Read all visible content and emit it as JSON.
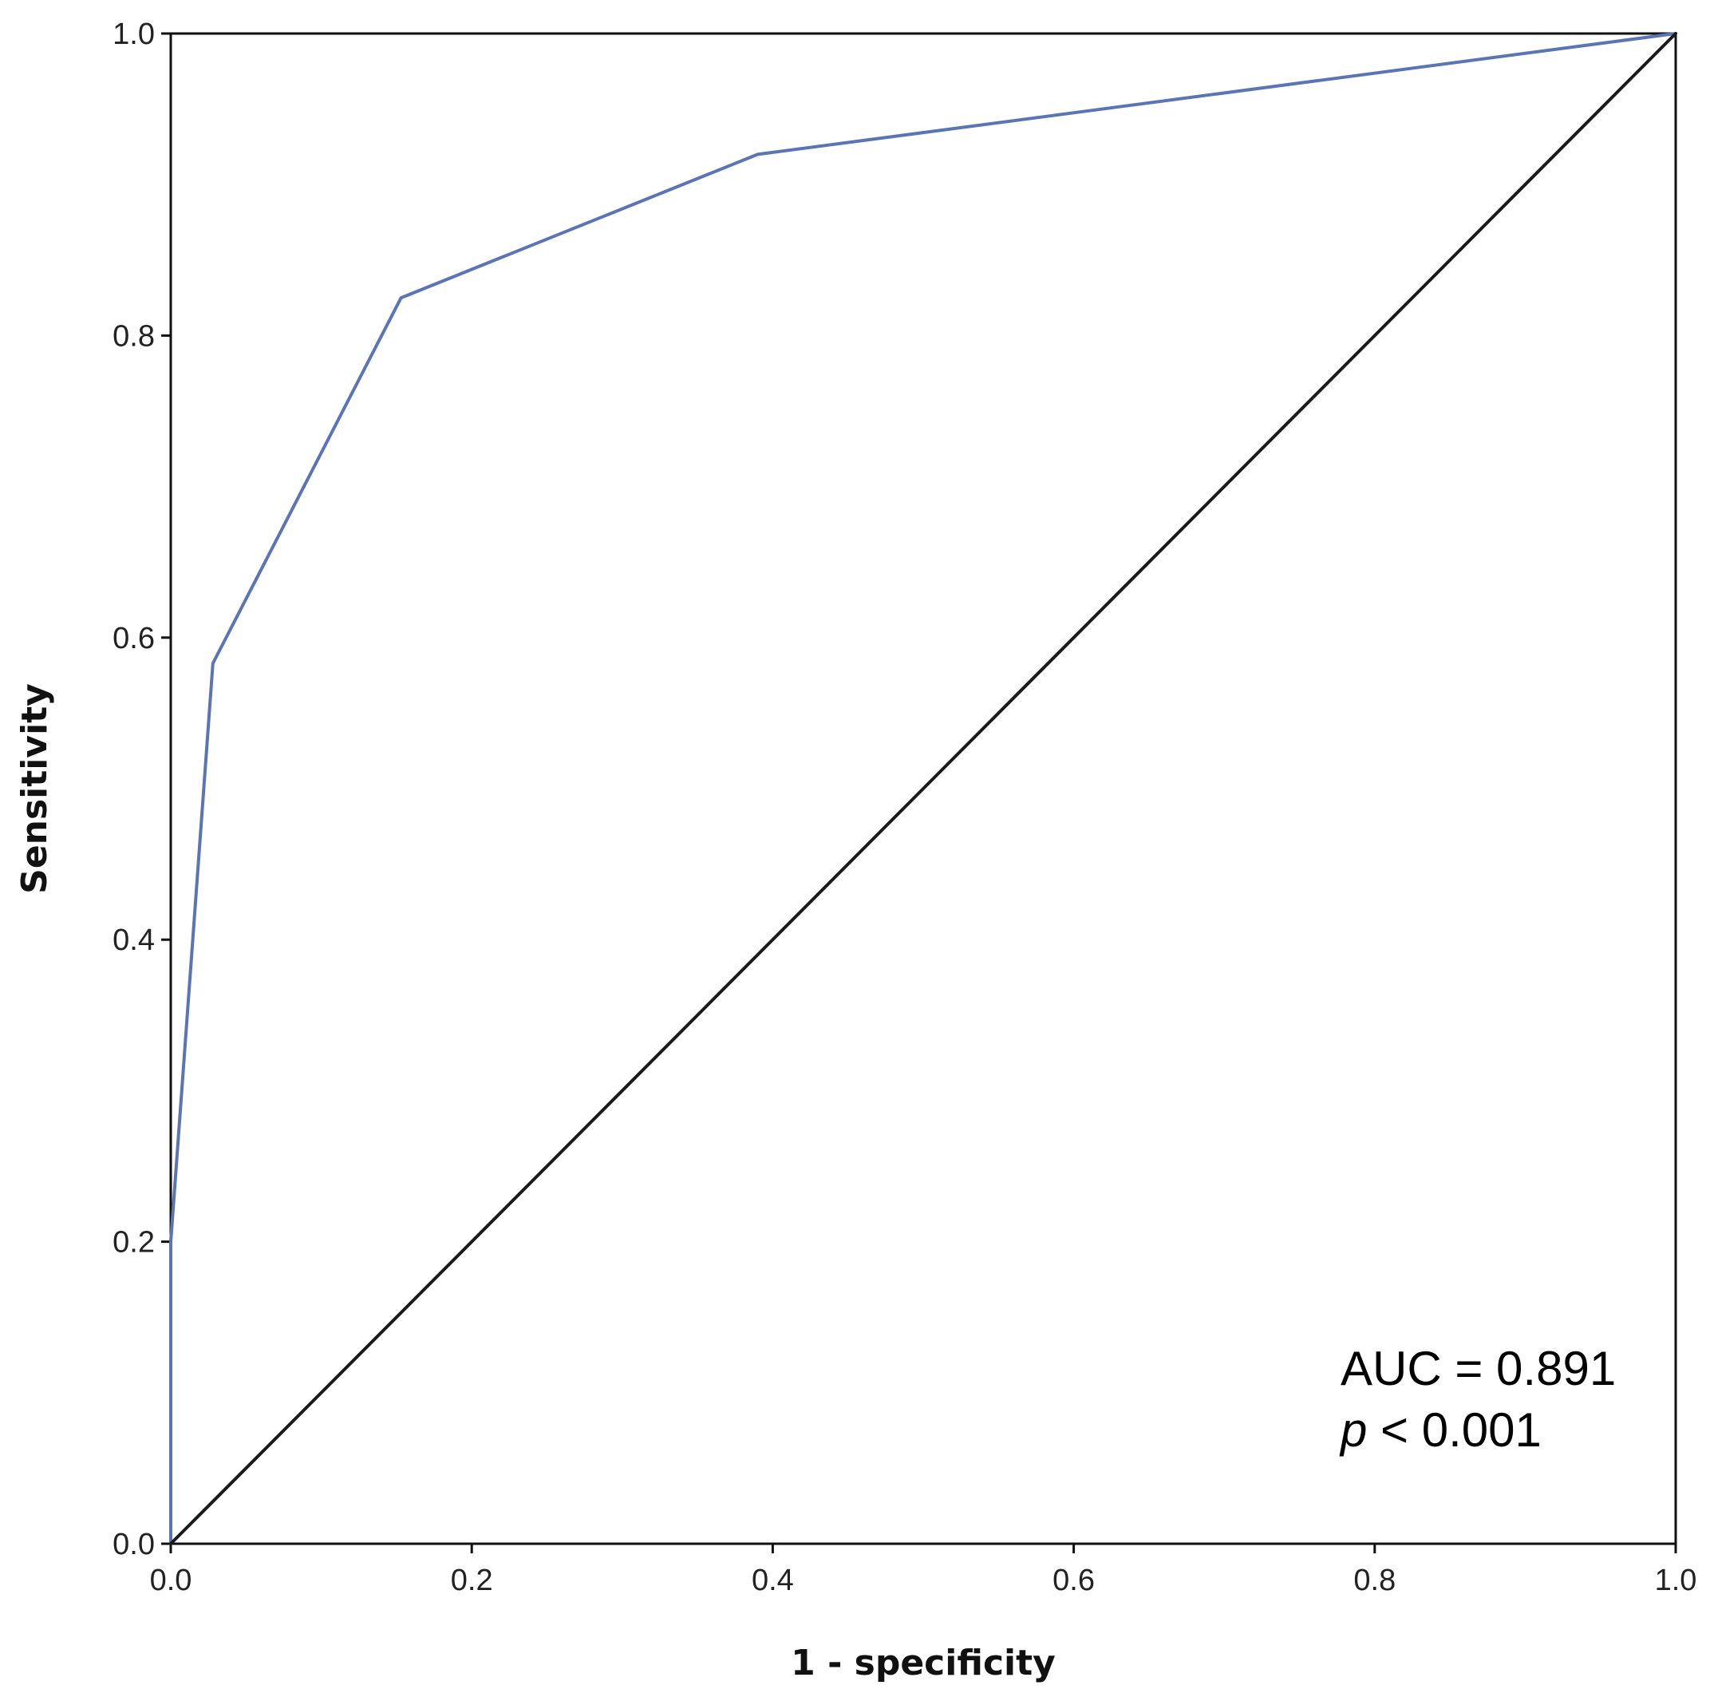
{
  "chart_data": {
    "type": "line",
    "title": "",
    "xlabel": "1 - specificity",
    "ylabel": "Sensitivity",
    "xlim": [
      0.0,
      1.0
    ],
    "ylim": [
      0.0,
      1.0
    ],
    "x_ticks": [
      "0.0",
      "0.2",
      "0.4",
      "0.6",
      "0.8",
      "1.0"
    ],
    "y_ticks": [
      "0.0",
      "0.2",
      "0.4",
      "0.6",
      "0.8",
      "1.0"
    ],
    "grid": false,
    "legend": "none",
    "series": [
      {
        "color": "#5b74b3",
        "x": [
          0.0,
          0.0,
          0.028,
          0.153,
          0.39,
          1.0
        ],
        "y": [
          0.0,
          0.2,
          0.583,
          0.825,
          0.92,
          1.0
        ]
      },
      {
        "color": "#1a1a1a",
        "x": [
          0.0,
          1.0
        ],
        "y": [
          0.0,
          1.0
        ]
      }
    ],
    "annotations": {
      "auc_text": "AUC = 0.891",
      "p_symbol": "p",
      "p_rest": " < 0.001"
    }
  }
}
